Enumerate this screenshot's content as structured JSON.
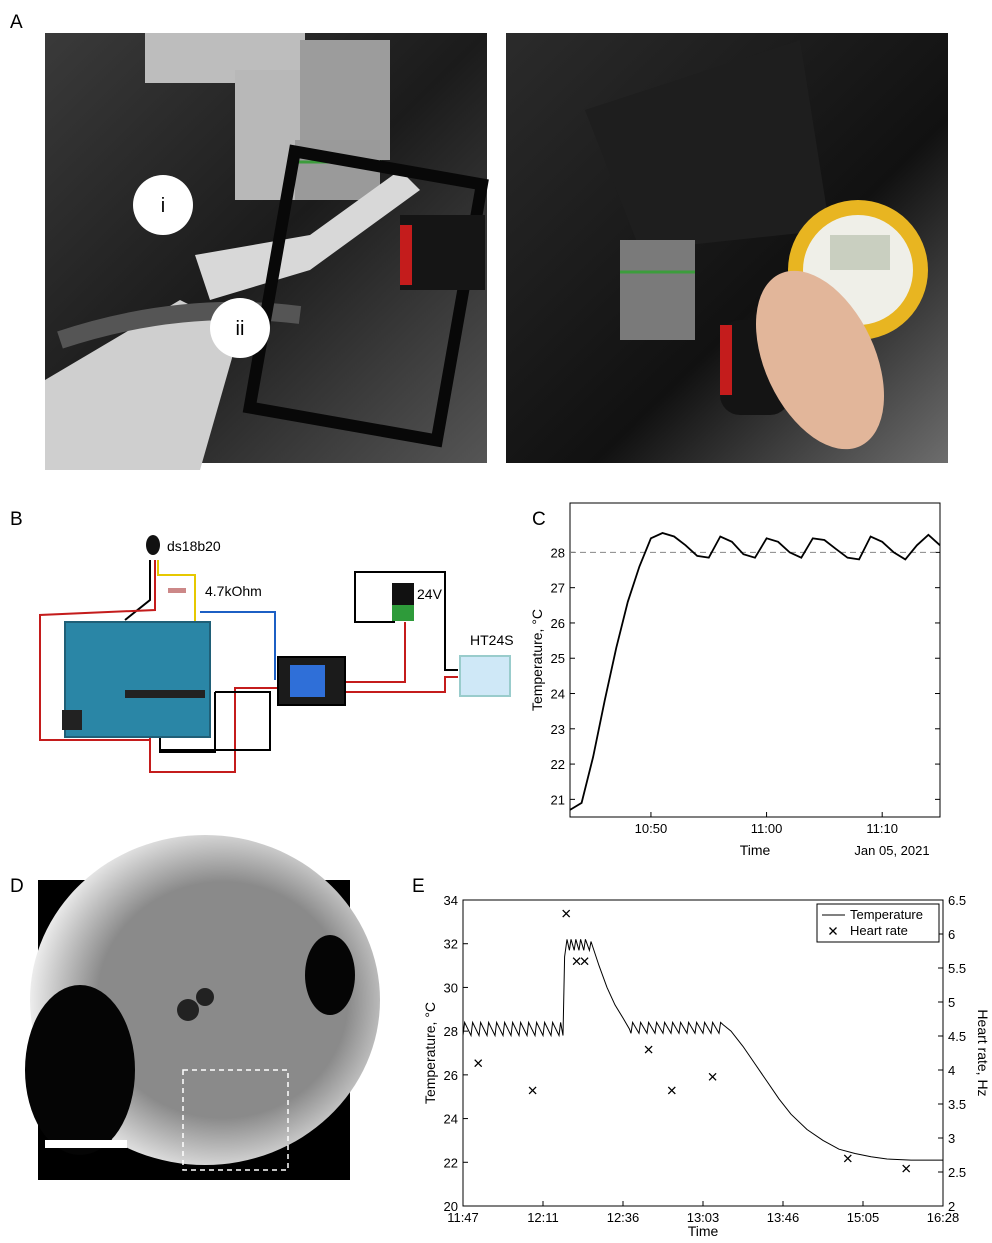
{
  "panel_labels": [
    "A",
    "B",
    "C",
    "D",
    "E"
  ],
  "photo_labels": [
    "i",
    "ii"
  ],
  "circuit_labels": [
    "ds18b20",
    "4.7kOhm",
    "24V",
    "HT24S"
  ],
  "chart_data": [
    {
      "type": "line",
      "xlabel": "Time",
      "ylabel": "Temperature, °C",
      "x_date_label": "Jan 05, 2021",
      "xlim": [
        "10:43",
        "11:15"
      ],
      "xticks": [
        "10:50",
        "11:00",
        "11:10"
      ],
      "ylim": [
        20.5,
        29.4
      ],
      "yticks": [
        21,
        22,
        23,
        24,
        25,
        26,
        27,
        28
      ],
      "reference_line": 28,
      "x": [
        "10:43",
        "10:44",
        "10:45",
        "10:46",
        "10:47",
        "10:48",
        "10:49",
        "10:50",
        "10:51",
        "10:52",
        "10:53",
        "10:54",
        "10:55",
        "10:56",
        "10:57",
        "10:58",
        "10:59",
        "11:00",
        "11:01",
        "11:02",
        "11:03",
        "11:04",
        "11:05",
        "11:06",
        "11:07",
        "11:08",
        "11:09",
        "11:10",
        "11:11",
        "11:12",
        "11:13",
        "11:14",
        "11:15"
      ],
      "series": [
        {
          "color": "#000000",
          "values": [
            20.7,
            20.9,
            22.2,
            23.8,
            25.3,
            26.6,
            27.6,
            28.4,
            28.55,
            28.45,
            28.2,
            27.9,
            27.85,
            28.45,
            28.3,
            27.95,
            27.85,
            28.4,
            28.3,
            28.0,
            27.85,
            28.4,
            28.35,
            28.1,
            27.85,
            27.8,
            28.45,
            28.3,
            28.0,
            27.8,
            28.2,
            28.5,
            28.2
          ]
        }
      ]
    },
    {
      "type": "line",
      "xlabel": "Time",
      "ylabel": "Temperature, °C",
      "y2label": "Heart rate, Hz",
      "xlim": [
        0,
        6
      ],
      "xticks": [
        {
          "value": 0,
          "label": "11:47"
        },
        {
          "value": 1,
          "label": "12:11"
        },
        {
          "value": 2,
          "label": "12:36"
        },
        {
          "value": 3,
          "label": "13:03"
        },
        {
          "value": 4,
          "label": "13:46"
        },
        {
          "value": 5,
          "label": "15:05"
        },
        {
          "value": 6,
          "label": "16:28"
        }
      ],
      "ylim": [
        20,
        34
      ],
      "yticks": [
        20,
        22,
        24,
        26,
        28,
        30,
        32,
        34
      ],
      "y2lim": [
        2,
        6.5
      ],
      "y2ticks": [
        2,
        2.5,
        3,
        3.5,
        4,
        4.5,
        5,
        5.5,
        6,
        6.5
      ],
      "legend": "upper right",
      "series": [
        {
          "name": "Temperature",
          "type": "line",
          "color": "#000000",
          "x": [
            0,
            0.02,
            0.1,
            0.12,
            0.2,
            0.22,
            0.3,
            0.32,
            0.4,
            0.42,
            0.5,
            0.52,
            0.6,
            0.62,
            0.7,
            0.72,
            0.8,
            0.82,
            0.9,
            0.92,
            1.0,
            1.02,
            1.1,
            1.12,
            1.2,
            1.22,
            1.25,
            1.27,
            1.3,
            1.33,
            1.35,
            1.39,
            1.41,
            1.45,
            1.47,
            1.51,
            1.53,
            1.58,
            1.6,
            1.7,
            1.8,
            1.9,
            2.0,
            2.08,
            2.1,
            2.12,
            2.2,
            2.22,
            2.3,
            2.32,
            2.4,
            2.42,
            2.5,
            2.52,
            2.6,
            2.62,
            2.7,
            2.72,
            2.8,
            2.82,
            2.9,
            2.92,
            3.0,
            3.02,
            3.1,
            3.12,
            3.2,
            3.22,
            3.25,
            3.35,
            3.5,
            3.65,
            3.8,
            3.95,
            4.1,
            4.3,
            4.5,
            4.7,
            4.9,
            5.1,
            5.3,
            5.6,
            6
          ],
          "values": [
            27.8,
            28.4,
            27.8,
            28.4,
            27.8,
            28.4,
            27.8,
            28.4,
            27.8,
            28.4,
            27.8,
            28.4,
            27.8,
            28.4,
            27.8,
            28.4,
            27.8,
            28.4,
            27.8,
            28.4,
            27.8,
            28.4,
            27.8,
            28.4,
            27.8,
            28.4,
            27.8,
            31.4,
            32.2,
            31.7,
            32.2,
            31.7,
            32.2,
            31.7,
            32.2,
            31.7,
            32.2,
            31.7,
            32.1,
            31.0,
            30.0,
            29.2,
            28.6,
            28.1,
            27.9,
            28.4,
            27.9,
            28.4,
            27.9,
            28.4,
            27.9,
            28.4,
            27.9,
            28.4,
            27.9,
            28.4,
            27.9,
            28.4,
            27.9,
            28.4,
            27.9,
            28.4,
            27.9,
            28.4,
            27.9,
            28.4,
            27.9,
            28.4,
            28.3,
            28.0,
            27.3,
            26.5,
            25.7,
            24.9,
            24.2,
            23.5,
            23.0,
            22.6,
            22.4,
            22.25,
            22.15,
            22.1,
            22.1
          ]
        },
        {
          "name": "Heart rate",
          "type": "scatter",
          "axis": "y2",
          "color": "#000000",
          "x": [
            0.19,
            0.87,
            1.29,
            1.42,
            1.52,
            2.32,
            2.61,
            3.12,
            4.81,
            5.54
          ],
          "values": [
            4.1,
            3.7,
            6.3,
            5.6,
            5.6,
            4.3,
            3.7,
            3.9,
            2.7,
            2.55
          ]
        }
      ]
    }
  ]
}
